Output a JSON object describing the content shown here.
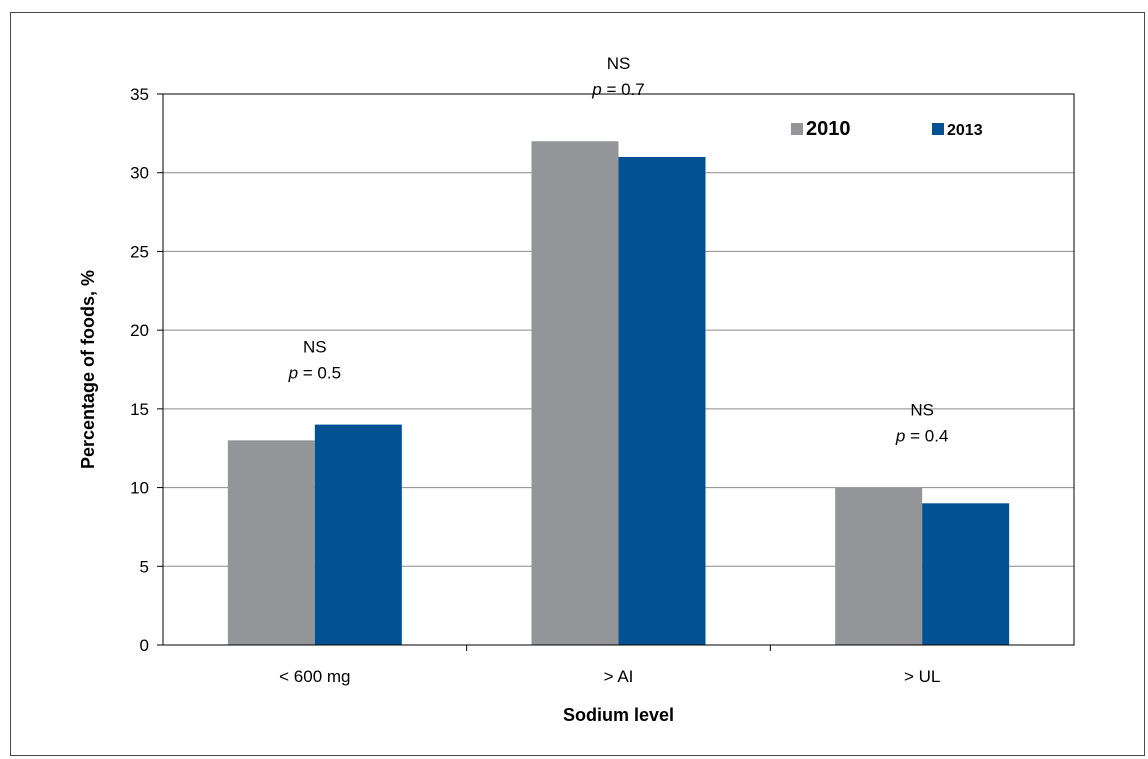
{
  "chart_data": {
    "type": "bar",
    "title": "",
    "xlabel": "Sodium level",
    "ylabel": "Percentage of foods, %",
    "ylim": [
      0,
      35
    ],
    "yticks": [
      "0",
      "5",
      "10",
      "15",
      "20",
      "25",
      "30",
      "35"
    ],
    "categories": [
      "< 600 mg",
      "> AI",
      "> UL"
    ],
    "series": [
      {
        "name": "2010",
        "values": [
          13,
          32,
          10
        ],
        "color": "#939598"
      },
      {
        "name": "2013",
        "values": [
          14,
          31,
          9
        ],
        "color": "#005293"
      }
    ],
    "annotations": [
      {
        "category": "< 600 mg",
        "line1": "NS",
        "p_symbol": "p",
        "p_value": " = 0.5"
      },
      {
        "category": "> AI",
        "line1": "NS",
        "p_symbol": "p",
        "p_value": " = 0.7"
      },
      {
        "category": "> UL",
        "line1": "NS",
        "p_symbol": "p",
        "p_value": " = 0.4"
      }
    ],
    "grid": true,
    "legend_position": "top-right"
  }
}
